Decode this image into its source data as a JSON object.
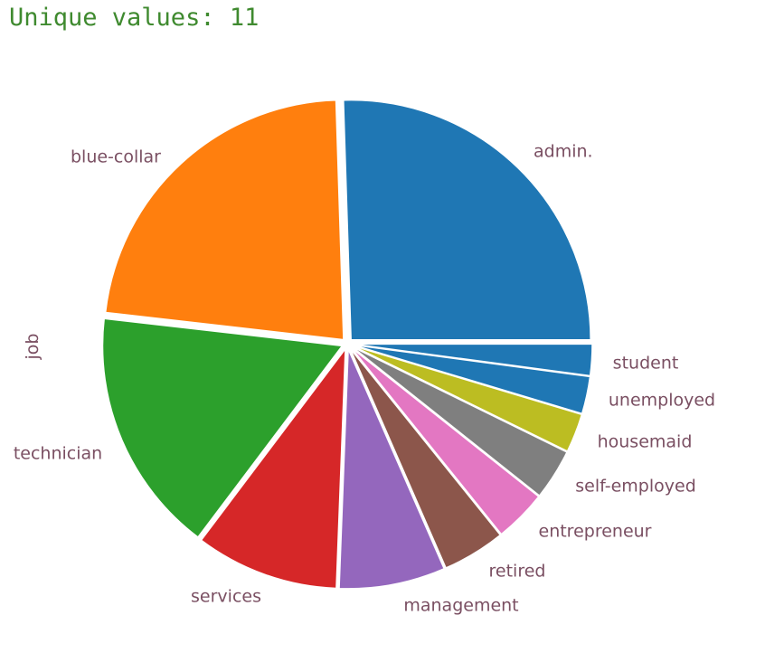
{
  "header": {
    "text": "Unique values: 11"
  },
  "chart_data": {
    "type": "pie",
    "ylabel": "job",
    "categories": [
      "admin.",
      "blue-collar",
      "technician",
      "services",
      "management",
      "retired",
      "entrepreneur",
      "self-employed",
      "housemaid",
      "unemployed",
      "student"
    ],
    "values": [
      25.3,
      22.5,
      16.4,
      9.6,
      7.1,
      4.2,
      3.5,
      3.4,
      2.6,
      2.5,
      2.1
    ],
    "colors": [
      "#1f77b4",
      "#ff7f0e",
      "#2ca02c",
      "#d62728",
      "#9467bd",
      "#8c564b",
      "#e377c2",
      "#7f7f7f",
      "#bcbd22",
      "#1f77b4",
      "#1f77b4"
    ]
  }
}
